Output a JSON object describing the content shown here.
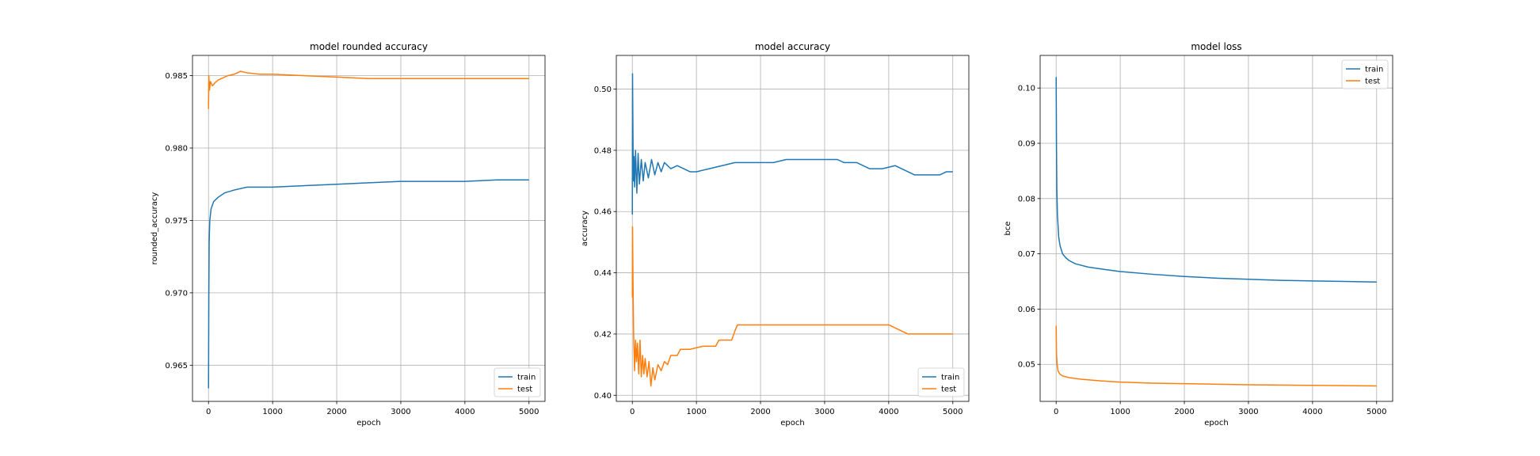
{
  "chart_data": [
    {
      "type": "line",
      "title": "model rounded accuracy",
      "xlabel": "epoch",
      "ylabel": "rounded_accuracy",
      "xlim": [
        -250,
        5250
      ],
      "ylim": [
        0.9625,
        0.9864
      ],
      "x_ticks": [
        0,
        1000,
        2000,
        3000,
        4000,
        5000
      ],
      "y_ticks": [
        0.965,
        0.97,
        0.975,
        0.98,
        0.985
      ],
      "y_decimals": 3,
      "grid": true,
      "legend": "lower right",
      "series": [
        {
          "name": "train",
          "color": "#1f77b4",
          "points": [
            [
              0,
              0.9634
            ],
            [
              5,
              0.97
            ],
            [
              10,
              0.9735
            ],
            [
              20,
              0.975
            ],
            [
              40,
              0.9758
            ],
            [
              80,
              0.9763
            ],
            [
              150,
              0.9766
            ],
            [
              250,
              0.9769
            ],
            [
              400,
              0.9771
            ],
            [
              600,
              0.9773
            ],
            [
              800,
              0.9773
            ],
            [
              1000,
              0.9773
            ],
            [
              1500,
              0.9774
            ],
            [
              2000,
              0.9775
            ],
            [
              2500,
              0.9776
            ],
            [
              3000,
              0.9777
            ],
            [
              3500,
              0.9777
            ],
            [
              4000,
              0.9777
            ],
            [
              4500,
              0.9778
            ],
            [
              5000,
              0.9778
            ]
          ]
        },
        {
          "name": "test",
          "color": "#ff7f0e",
          "points": [
            [
              0,
              0.9827
            ],
            [
              5,
              0.985
            ],
            [
              15,
              0.984
            ],
            [
              30,
              0.9846
            ],
            [
              60,
              0.9843
            ],
            [
              100,
              0.9845
            ],
            [
              150,
              0.9847
            ],
            [
              200,
              0.9848
            ],
            [
              300,
              0.985
            ],
            [
              400,
              0.9851
            ],
            [
              500,
              0.9853
            ],
            [
              600,
              0.9852
            ],
            [
              800,
              0.9851
            ],
            [
              1000,
              0.9851
            ],
            [
              1500,
              0.985
            ],
            [
              2000,
              0.9849
            ],
            [
              2500,
              0.9848
            ],
            [
              3000,
              0.9848
            ],
            [
              3500,
              0.9848
            ],
            [
              4000,
              0.9848
            ],
            [
              5000,
              0.9848
            ]
          ]
        }
      ]
    },
    {
      "type": "line",
      "title": "model accuracy",
      "xlabel": "epoch",
      "ylabel": "accuracy",
      "xlim": [
        -250,
        5250
      ],
      "ylim": [
        0.398,
        0.511
      ],
      "x_ticks": [
        0,
        1000,
        2000,
        3000,
        4000,
        5000
      ],
      "y_ticks": [
        0.4,
        0.42,
        0.44,
        0.46,
        0.48,
        0.5
      ],
      "y_decimals": 2,
      "grid": true,
      "legend": "lower right",
      "series": [
        {
          "name": "train",
          "color": "#1f77b4",
          "points": [
            [
              0,
              0.459
            ],
            [
              3,
              0.505
            ],
            [
              8,
              0.49
            ],
            [
              15,
              0.47
            ],
            [
              25,
              0.478
            ],
            [
              35,
              0.468
            ],
            [
              50,
              0.48
            ],
            [
              70,
              0.466
            ],
            [
              90,
              0.479
            ],
            [
              110,
              0.469
            ],
            [
              140,
              0.477
            ],
            [
              170,
              0.47
            ],
            [
              200,
              0.476
            ],
            [
              250,
              0.471
            ],
            [
              300,
              0.477
            ],
            [
              350,
              0.472
            ],
            [
              400,
              0.476
            ],
            [
              450,
              0.473
            ],
            [
              500,
              0.476
            ],
            [
              600,
              0.474
            ],
            [
              700,
              0.475
            ],
            [
              800,
              0.474
            ],
            [
              900,
              0.473
            ],
            [
              1000,
              0.473
            ],
            [
              1200,
              0.474
            ],
            [
              1400,
              0.475
            ],
            [
              1600,
              0.476
            ],
            [
              1800,
              0.476
            ],
            [
              2000,
              0.476
            ],
            [
              2200,
              0.476
            ],
            [
              2400,
              0.477
            ],
            [
              2600,
              0.477
            ],
            [
              2800,
              0.477
            ],
            [
              3000,
              0.477
            ],
            [
              3200,
              0.477
            ],
            [
              3300,
              0.476
            ],
            [
              3500,
              0.476
            ],
            [
              3700,
              0.474
            ],
            [
              3900,
              0.474
            ],
            [
              4100,
              0.475
            ],
            [
              4200,
              0.474
            ],
            [
              4300,
              0.473
            ],
            [
              4400,
              0.472
            ],
            [
              4600,
              0.472
            ],
            [
              4800,
              0.472
            ],
            [
              4900,
              0.473
            ],
            [
              5000,
              0.473
            ]
          ]
        },
        {
          "name": "test",
          "color": "#ff7f0e",
          "points": [
            [
              0,
              0.432
            ],
            [
              3,
              0.455
            ],
            [
              10,
              0.438
            ],
            [
              20,
              0.42
            ],
            [
              35,
              0.408
            ],
            [
              50,
              0.418
            ],
            [
              65,
              0.411
            ],
            [
              80,
              0.417
            ],
            [
              100,
              0.407
            ],
            [
              120,
              0.418
            ],
            [
              140,
              0.406
            ],
            [
              160,
              0.413
            ],
            [
              180,
              0.407
            ],
            [
              200,
              0.412
            ],
            [
              230,
              0.406
            ],
            [
              260,
              0.411
            ],
            [
              290,
              0.403
            ],
            [
              320,
              0.409
            ],
            [
              350,
              0.405
            ],
            [
              400,
              0.41
            ],
            [
              450,
              0.408
            ],
            [
              500,
              0.411
            ],
            [
              550,
              0.41
            ],
            [
              600,
              0.413
            ],
            [
              700,
              0.413
            ],
            [
              750,
              0.415
            ],
            [
              900,
              0.415
            ],
            [
              1100,
              0.416
            ],
            [
              1300,
              0.416
            ],
            [
              1350,
              0.418
            ],
            [
              1550,
              0.418
            ],
            [
              1600,
              0.421
            ],
            [
              1640,
              0.423
            ],
            [
              1700,
              0.423
            ],
            [
              2000,
              0.423
            ],
            [
              3000,
              0.423
            ],
            [
              4000,
              0.423
            ],
            [
              4100,
              0.422
            ],
            [
              4200,
              0.421
            ],
            [
              4300,
              0.42
            ],
            [
              4400,
              0.42
            ],
            [
              5000,
              0.42
            ]
          ]
        }
      ]
    },
    {
      "type": "line",
      "title": "model loss",
      "xlabel": "epoch",
      "ylabel": "bce",
      "xlim": [
        -250,
        5250
      ],
      "ylim": [
        0.0433,
        0.1059
      ],
      "x_ticks": [
        0,
        1000,
        2000,
        3000,
        4000,
        5000
      ],
      "y_ticks": [
        0.05,
        0.06,
        0.07,
        0.08,
        0.09,
        0.1
      ],
      "y_decimals": 2,
      "grid": true,
      "legend": "upper right",
      "series": [
        {
          "name": "train",
          "color": "#1f77b4",
          "points": [
            [
              0,
              0.102
            ],
            [
              5,
              0.09
            ],
            [
              10,
              0.082
            ],
            [
              20,
              0.077
            ],
            [
              40,
              0.073
            ],
            [
              60,
              0.0715
            ],
            [
              100,
              0.07
            ],
            [
              150,
              0.0693
            ],
            [
              200,
              0.0688
            ],
            [
              300,
              0.0682
            ],
            [
              500,
              0.0676
            ],
            [
              800,
              0.0671
            ],
            [
              1000,
              0.0668
            ],
            [
              1500,
              0.0663
            ],
            [
              2000,
              0.0659
            ],
            [
              2500,
              0.0656
            ],
            [
              3000,
              0.0654
            ],
            [
              3500,
              0.0652
            ],
            [
              4000,
              0.0651
            ],
            [
              4500,
              0.065
            ],
            [
              5000,
              0.0649
            ]
          ]
        },
        {
          "name": "test",
          "color": "#ff7f0e",
          "points": [
            [
              0,
              0.057
            ],
            [
              5,
              0.052
            ],
            [
              15,
              0.05
            ],
            [
              30,
              0.0488
            ],
            [
              60,
              0.0482
            ],
            [
              100,
              0.0479
            ],
            [
              200,
              0.0476
            ],
            [
              400,
              0.0473
            ],
            [
              700,
              0.047
            ],
            [
              1000,
              0.0468
            ],
            [
              1500,
              0.0466
            ],
            [
              2000,
              0.0465
            ],
            [
              3000,
              0.0463
            ],
            [
              4000,
              0.0462
            ],
            [
              5000,
              0.0461
            ]
          ]
        }
      ]
    }
  ]
}
